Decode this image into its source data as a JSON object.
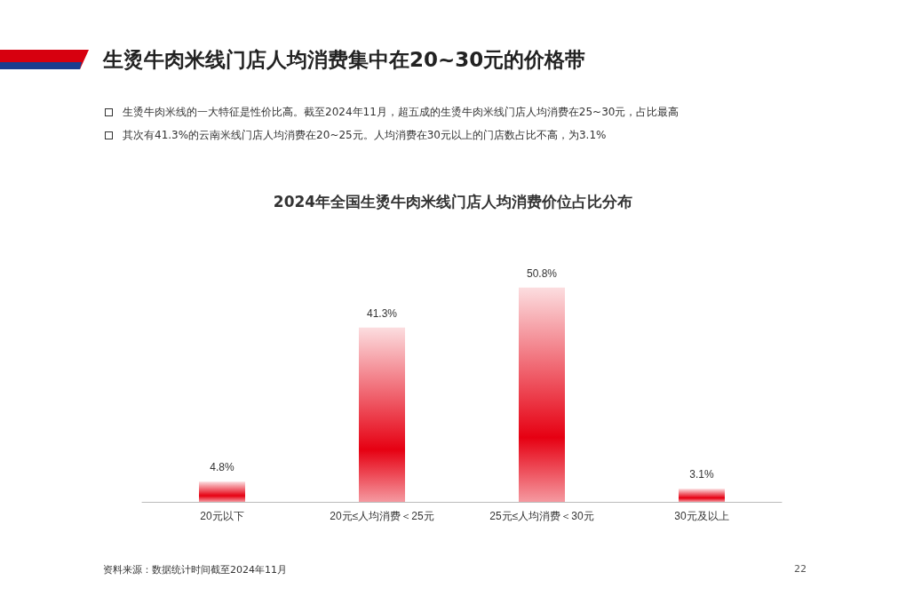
{
  "chart_data": {
    "type": "bar",
    "title": "生烫牛肉米线门店人均消费集中在20~30元的价格带",
    "subtitle": "2024年全国生烫牛肉米线门店人均消费价位占比分布",
    "categories": [
      "20元以下",
      "20元≤人均消费＜25元",
      "25元≤人均消费＜30元",
      "30元及以上"
    ],
    "values": [
      4.8,
      41.3,
      50.8,
      3.1
    ],
    "value_labels": [
      "4.8%",
      "41.3%",
      "50.8%",
      "3.1%"
    ],
    "color": "#e60012",
    "annotations": [
      "生烫牛肉米线的一大特征是性价比高。截至2024年11月，超五成的生烫牛肉米线门店人均消费在25~30元，占比最高",
      "其次有41.3%的云南米线门店人均消费在20~25元。人均消费在30元以上的门店数占比不高，为3.1%",
      "资料来源：数据统计时间截至2024年11月",
      "22"
    ]
  }
}
